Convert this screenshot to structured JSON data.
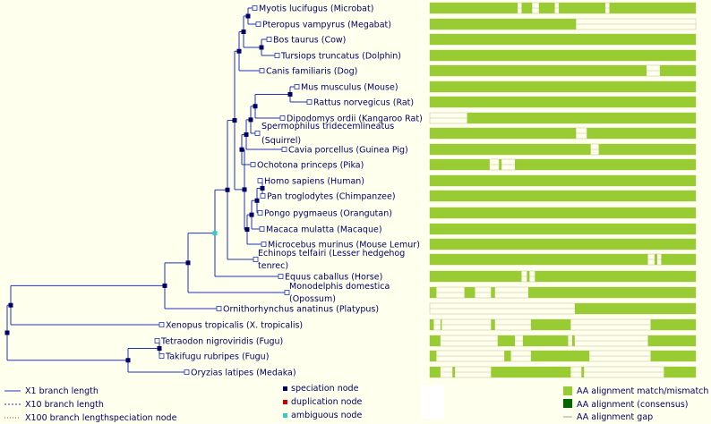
{
  "colors": {
    "background": "#ffffee",
    "branch": "#2233bb",
    "speciation_node": "#000066",
    "duplication_node": "#cc0000",
    "ambiguous_node": "#33cccc",
    "aa_match": "#99cc33",
    "aa_consensus": "#006600",
    "aa_gap": "#ffffee",
    "x10_line": "#2233bb",
    "x100_line": "#cc3300"
  },
  "species": [
    {
      "id": "myotis",
      "label": "Myotis lucifugus (Microbat)"
    },
    {
      "id": "pteropus",
      "label": "Pteropus vampyrus (Megabat)"
    },
    {
      "id": "bos",
      "label": "Bos taurus (Cow)"
    },
    {
      "id": "tursiops",
      "label": "Tursiops truncatus (Dolphin)"
    },
    {
      "id": "canis",
      "label": "Canis familiaris (Dog)"
    },
    {
      "id": "mus",
      "label": "Mus musculus (Mouse)"
    },
    {
      "id": "rattus",
      "label": "Rattus norvegicus (Rat)"
    },
    {
      "id": "dipodomys",
      "label": "Dipodomys ordii (Kangaroo Rat)"
    },
    {
      "id": "spermophilus",
      "label": "Spermophilus tridecemlineatus",
      "label2": "(Squirrel)"
    },
    {
      "id": "cavia",
      "label": "Cavia porcellus (Guinea Pig)"
    },
    {
      "id": "ochotona",
      "label": "Ochotona princeps (Pika)"
    },
    {
      "id": "homo",
      "label": "Homo sapiens (Human)"
    },
    {
      "id": "pan",
      "label": "Pan troglodytes (Chimpanzee)"
    },
    {
      "id": "pongo",
      "label": "Pongo pygmaeus (Orangutan)"
    },
    {
      "id": "macaca",
      "label": "Macaca mulatta (Macaque)"
    },
    {
      "id": "microcebus",
      "label": "Microcebus murinus (Mouse Lemur)"
    },
    {
      "id": "echinops",
      "label": "Echinops telfairi (Lesser hedgehog",
      "label2": "tenrec)"
    },
    {
      "id": "equus",
      "label": "Equus caballus (Horse)"
    },
    {
      "id": "monodelphis",
      "label": "Monodelphis domestica",
      "label2": "(Opossum)"
    },
    {
      "id": "ornithorhynchus",
      "label": "Ornithorhynchus anatinus (Platypus)"
    },
    {
      "id": "xenopus",
      "label": "Xenopus tropicalis (X. tropicalis)"
    },
    {
      "id": "tetraodon",
      "label": "Tetraodon nigroviridis (Fugu)"
    },
    {
      "id": "takifugu",
      "label": "Takifugu rubripes (Fugu)"
    },
    {
      "id": "oryzias",
      "label": "Oryzias latipes (Medaka)"
    }
  ],
  "alignments": [
    [
      [
        0,
        0.33
      ],
      [
        0.345,
        0.385
      ],
      [
        0.41,
        0.47
      ],
      [
        0.485,
        0.66
      ],
      [
        0.675,
        1
      ]
    ],
    [
      [
        0,
        0.55
      ]
    ],
    [
      [
        0,
        1
      ]
    ],
    [
      [
        0,
        1
      ]
    ],
    [
      [
        0,
        0.815
      ],
      [
        0.865,
        1
      ]
    ],
    [
      [
        0,
        1
      ]
    ],
    [
      [
        0,
        1
      ]
    ],
    [
      [
        0.14,
        1
      ]
    ],
    [
      [
        0,
        0.55
      ],
      [
        0.59,
        1
      ]
    ],
    [
      [
        0,
        0.605
      ],
      [
        0.635,
        1
      ]
    ],
    [
      [
        0,
        0.225
      ],
      [
        0.26,
        0.27
      ],
      [
        0.32,
        1
      ]
    ],
    [
      [
        0,
        1
      ]
    ],
    [
      [
        0,
        1
      ]
    ],
    [
      [
        0,
        1
      ]
    ],
    [
      [
        0,
        1
      ]
    ],
    [
      [
        0,
        1
      ]
    ],
    [
      [
        0,
        0.82
      ],
      [
        0.845,
        0.855
      ],
      [
        0.87,
        1
      ]
    ],
    [
      [
        0,
        0.345
      ],
      [
        0.365,
        0.375
      ],
      [
        0.395,
        1
      ]
    ],
    [
      [
        0,
        0.025
      ],
      [
        0.13,
        0.17
      ],
      [
        0.23,
        0.245
      ],
      [
        0.37,
        1
      ]
    ],
    [
      [
        0.545,
        1
      ]
    ],
    [
      [
        0,
        0.015
      ],
      [
        0.04,
        0.045
      ],
      [
        0.23,
        0.245
      ],
      [
        0.38,
        0.53
      ],
      [
        0.83,
        1
      ]
    ],
    [
      [
        0,
        0.04
      ],
      [
        0.255,
        0.32
      ],
      [
        0.35,
        0.52
      ],
      [
        0.535,
        0.545
      ],
      [
        0.82,
        1
      ]
    ],
    [
      [
        0,
        0.025
      ],
      [
        0.28,
        0.305
      ],
      [
        0.38,
        0.6
      ],
      [
        0.83,
        1
      ]
    ],
    [
      [
        0,
        0.04
      ],
      [
        0.085,
        0.095
      ],
      [
        0.23,
        0.53
      ],
      [
        0.57,
        0.58
      ],
      [
        0.88,
        1
      ]
    ]
  ],
  "legend": {
    "x1_branch": "X1 branch length",
    "x10_branch": "X10 branch length",
    "x100_branch": "X100 branch lengthspeciation node",
    "speciation_node": "speciation node",
    "duplication_node": "duplication node",
    "ambiguous_node": "ambiguous node",
    "aa_match": "AA alignment match/mismatch",
    "aa_consensus": "AA alignment (consensus)",
    "aa_gap": "AA alignment gap"
  }
}
